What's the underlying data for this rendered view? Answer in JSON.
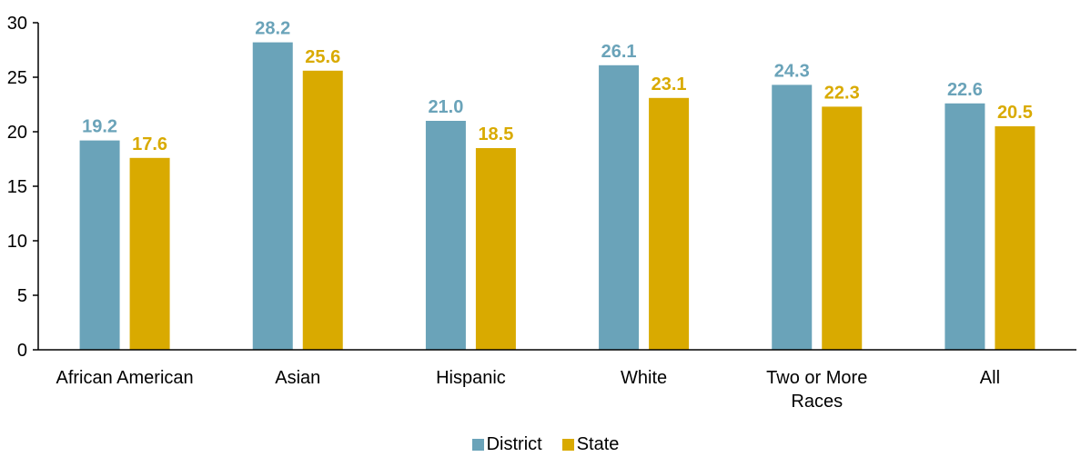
{
  "chart_data": {
    "type": "bar",
    "categories": [
      "African American",
      "Asian",
      "Hispanic",
      "White",
      "Two or More Races",
      "All"
    ],
    "series": [
      {
        "name": "District",
        "color": "#6aa3b9",
        "values": [
          19.2,
          28.2,
          21.0,
          26.1,
          24.3,
          22.6
        ],
        "labels": [
          "19.2",
          "28.2",
          "21.0",
          "26.1",
          "24.3",
          "22.6"
        ]
      },
      {
        "name": "State",
        "color": "#d9aa00",
        "values": [
          17.6,
          25.6,
          18.5,
          23.1,
          22.3,
          20.5
        ],
        "labels": [
          "17.6",
          "25.6",
          "18.5",
          "23.1",
          "22.3",
          "20.5"
        ]
      }
    ],
    "yticks": [
      "0",
      "5",
      "10",
      "15",
      "20",
      "25",
      "30"
    ],
    "ylim": [
      0,
      30
    ],
    "grid": false,
    "legend_position": "bottom"
  }
}
